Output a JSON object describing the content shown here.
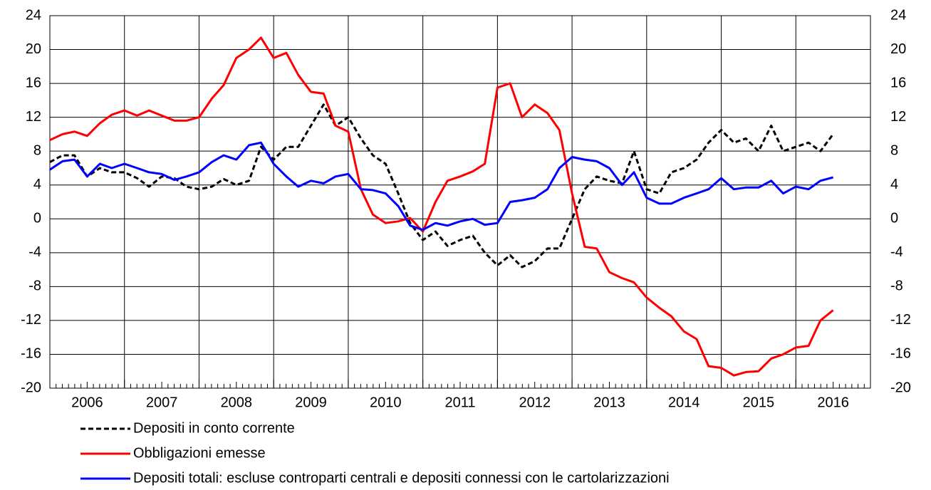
{
  "chart_data": {
    "type": "line",
    "x": [
      2006.0,
      2006.17,
      2006.33,
      2006.5,
      2006.67,
      2006.83,
      2007.0,
      2007.17,
      2007.33,
      2007.5,
      2007.67,
      2007.83,
      2008.0,
      2008.17,
      2008.33,
      2008.5,
      2008.67,
      2008.83,
      2009.0,
      2009.17,
      2009.33,
      2009.5,
      2009.67,
      2009.83,
      2010.0,
      2010.17,
      2010.33,
      2010.5,
      2010.67,
      2010.83,
      2011.0,
      2011.17,
      2011.33,
      2011.5,
      2011.67,
      2011.83,
      2012.0,
      2012.17,
      2012.33,
      2012.5,
      2012.67,
      2012.83,
      2013.0,
      2013.17,
      2013.33,
      2013.5,
      2013.67,
      2013.83,
      2014.0,
      2014.17,
      2014.33,
      2014.5,
      2014.67,
      2014.83,
      2015.0,
      2015.17,
      2015.33,
      2015.5,
      2015.67,
      2015.83,
      2016.0,
      2016.17,
      2016.33,
      2016.5
    ],
    "series": [
      {
        "name": "Depositi in conto corrente",
        "color": "#000000",
        "dash": true,
        "values": [
          6.7,
          7.5,
          7.5,
          5.0,
          6.0,
          5.5,
          5.5,
          4.8,
          3.8,
          5.0,
          4.8,
          3.8,
          3.5,
          3.8,
          4.7,
          4.0,
          4.5,
          8.5,
          7.0,
          8.5,
          8.5,
          11.0,
          13.5,
          11.0,
          12.0,
          9.5,
          7.5,
          6.5,
          3.0,
          -0.5,
          -2.5,
          -1.5,
          -3.2,
          -2.5,
          -2.0,
          -4.0,
          -5.5,
          -4.3,
          -5.7,
          -5.0,
          -3.5,
          -3.5,
          0.0,
          3.5,
          5.0,
          4.5,
          4.2,
          8.0,
          3.5,
          3.0,
          5.5,
          6.0,
          7.0,
          9.0,
          10.5,
          9.0,
          9.5,
          8.0,
          11.0,
          8.0,
          8.5,
          9.0,
          8.0,
          10.0
        ]
      },
      {
        "name": "Obbligazioni emesse",
        "color": "#ff0000",
        "dash": false,
        "values": [
          9.3,
          10.0,
          10.3,
          9.8,
          11.3,
          12.3,
          12.8,
          12.2,
          12.8,
          12.2,
          11.6,
          11.6,
          12.0,
          14.2,
          15.8,
          19.0,
          20.0,
          21.4,
          19.0,
          19.6,
          17.0,
          15.0,
          14.8,
          11.0,
          10.3,
          3.5,
          0.5,
          -0.5,
          -0.3,
          0.1,
          -1.5,
          2.0,
          4.5,
          5.0,
          5.6,
          6.5,
          15.5,
          16.0,
          12.0,
          13.5,
          12.5,
          10.5,
          3.0,
          -3.3,
          -3.5,
          -6.3,
          -7.0,
          -7.5,
          -9.3,
          -10.5,
          -11.5,
          -13.3,
          -14.2,
          -17.4,
          -17.6,
          -18.5,
          -18.1,
          -18.0,
          -16.5,
          -16.0,
          -15.2,
          -15.0,
          -12.0,
          -10.8
        ]
      },
      {
        "name": "Depositi totali: escluse controparti centrali e depositi connessi con le cartolarizzazioni",
        "color": "#0000ff",
        "dash": false,
        "values": [
          5.8,
          6.8,
          7.0,
          5.0,
          6.5,
          6.0,
          6.5,
          6.0,
          5.5,
          5.3,
          4.6,
          5.0,
          5.5,
          6.7,
          7.5,
          7.0,
          8.7,
          9.0,
          6.5,
          5.0,
          3.8,
          4.5,
          4.2,
          5.0,
          5.3,
          3.5,
          3.4,
          3.0,
          1.5,
          -0.8,
          -1.3,
          -0.5,
          -0.8,
          -0.3,
          0.0,
          -0.7,
          -0.5,
          2.0,
          2.2,
          2.5,
          3.5,
          6.0,
          7.3,
          7.0,
          6.8,
          6.0,
          4.0,
          5.5,
          2.5,
          1.8,
          1.8,
          2.5,
          3.0,
          3.5,
          4.8,
          3.5,
          3.7,
          3.7,
          4.5,
          3.0,
          3.8,
          3.5,
          4.5,
          4.9
        ]
      }
    ],
    "xlim": [
      2006,
      2017
    ],
    "xticks": [
      {
        "value": 2006.5,
        "label": "2006"
      },
      {
        "value": 2007.5,
        "label": "2007"
      },
      {
        "value": 2008.5,
        "label": "2008"
      },
      {
        "value": 2009.5,
        "label": "2009"
      },
      {
        "value": 2010.5,
        "label": "2010"
      },
      {
        "value": 2011.5,
        "label": "2011"
      },
      {
        "value": 2012.5,
        "label": "2012"
      },
      {
        "value": 2013.5,
        "label": "2013"
      },
      {
        "value": 2014.5,
        "label": "2014"
      },
      {
        "value": 2015.5,
        "label": "2015"
      },
      {
        "value": 2016.5,
        "label": "2016"
      }
    ],
    "xgrid": [
      2007,
      2008,
      2009,
      2010,
      2011,
      2012,
      2013,
      2014,
      2015,
      2016
    ],
    "ylim": [
      -20,
      24
    ],
    "yticks": [
      -20,
      -16,
      -12,
      -8,
      -4,
      0,
      4,
      8,
      12,
      16,
      20,
      24
    ],
    "y2lim": [
      -20,
      24
    ],
    "y2ticks": [
      -20,
      -16,
      -12,
      -8,
      -4,
      0,
      4,
      8,
      12,
      16,
      20,
      24
    ],
    "grid": true,
    "legend": "bottom"
  }
}
